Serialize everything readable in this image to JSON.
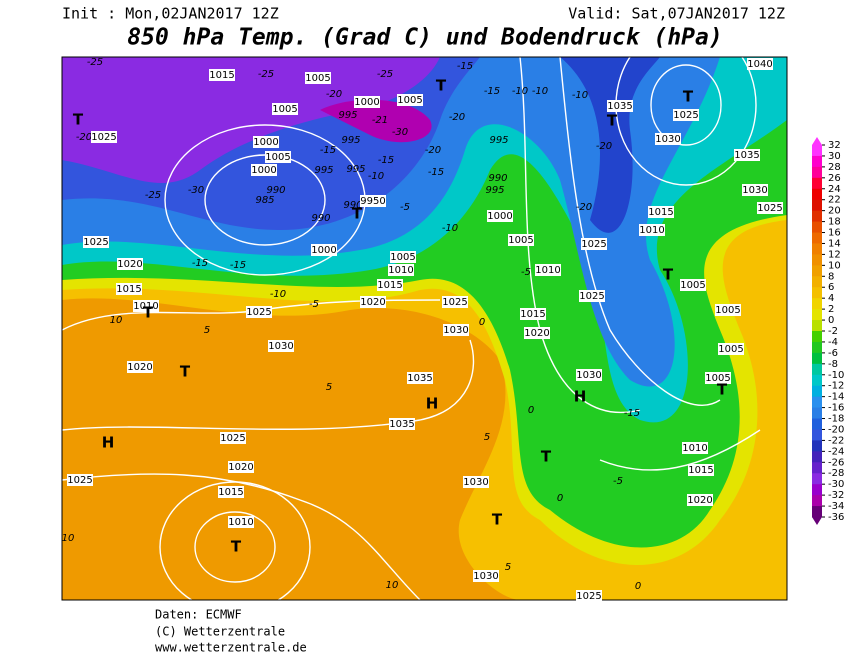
{
  "header": {
    "init": "Init : Mon,02JAN2017 12Z",
    "valid": "Valid: Sat,07JAN2017 12Z",
    "title": "850 hPa Temp. (Grad C) und Bodendruck (hPa)"
  },
  "footer": [
    "Daten: ECMWF",
    "(C) Wetterzentrale",
    "www.wetterzentrale.de"
  ],
  "colorbar": {
    "ticks": [
      32,
      30,
      28,
      26,
      24,
      22,
      20,
      18,
      16,
      14,
      12,
      10,
      8,
      6,
      4,
      2,
      0,
      -2,
      -4,
      -6,
      -8,
      -10,
      -12,
      -14,
      -16,
      -18,
      -20,
      -22,
      -24,
      -26,
      -28,
      -30,
      -32,
      -34,
      -36
    ],
    "colors": [
      "#ff33ff",
      "#ff00cc",
      "#ff0099",
      "#ff0033",
      "#ee0000",
      "#dd1100",
      "#e03000",
      "#e85000",
      "#ee6a00",
      "#f08000",
      "#f09000",
      "#f0a000",
      "#f2b000",
      "#f4c000",
      "#f0d400",
      "#e4e400",
      "#b8e000",
      "#44d000",
      "#22c820",
      "#00c040",
      "#00c8a0",
      "#00c8c8",
      "#00b0e0",
      "#2a90ee",
      "#2a7fe6",
      "#2060dd",
      "#3355dd",
      "#2233bb",
      "#4422bb",
      "#6622cc",
      "#8a2be2",
      "#9900cc",
      "#aa00aa",
      "#660077"
    ]
  },
  "map": {
    "labels": [
      "1015",
      "1005",
      "-25",
      "-25",
      "-25",
      "1000",
      "1005",
      "995",
      "1005",
      "-20",
      "-21",
      "-30",
      "-20",
      "T",
      "-20",
      "1025",
      "T",
      "-15",
      "T",
      "1025",
      "1040",
      "1035",
      "T",
      "-20",
      "1030",
      "1035",
      "1030",
      "1025",
      "1015",
      "1010",
      "-15",
      "-10",
      "-10",
      "-10",
      "995",
      "990",
      "995",
      "1000",
      "1005",
      "-5",
      "1010",
      "1025",
      "-20",
      "1025",
      "T",
      "1005",
      "1005",
      "1005",
      "1005",
      "T",
      "1010",
      "1015",
      "1020",
      "-15",
      "H",
      "1030",
      "T",
      "-5",
      "0",
      "1000",
      "990",
      "985",
      "990",
      "1000",
      "990",
      "9950",
      "T",
      "-5",
      "1005",
      "1010",
      "1015",
      "1020",
      "-10",
      "-15",
      "-10",
      "995",
      "995",
      "-15",
      "995",
      "1000",
      "1005",
      "-15",
      "-20",
      "1025",
      "1020",
      "-15",
      "-15",
      "1015",
      "1010",
      "T",
      "-10",
      "-5",
      "1025",
      "10",
      "5",
      "1030",
      "1020",
      "T",
      "1025",
      "1030",
      "0",
      "1035",
      "H",
      "1035",
      "5",
      "-30",
      "-25",
      "1025",
      "1020",
      "1015",
      "1010",
      "T",
      "H",
      "1025",
      "1030",
      "T",
      "1030",
      "5",
      "1025",
      "0",
      "10",
      "10",
      "1015",
      "1020",
      "5",
      "0"
    ]
  }
}
